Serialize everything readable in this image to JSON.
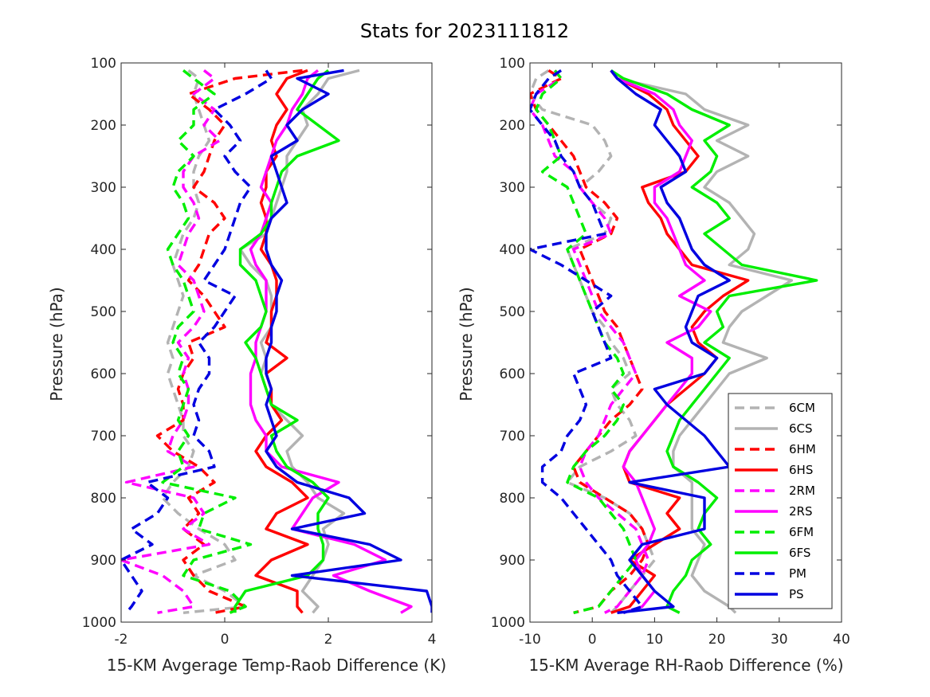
{
  "title": "Stats for 2023111812",
  "colors": {
    "6C": "#b3b3b3",
    "6H": "#ff0000",
    "2R": "#ff00ff",
    "6F": "#00ee00",
    "P": "#0000e0"
  },
  "legend": [
    {
      "name": "6CM",
      "color": "#b3b3b3",
      "dash": true
    },
    {
      "name": "6CS",
      "color": "#b3b3b3",
      "dash": false
    },
    {
      "name": "6HM",
      "color": "#ff0000",
      "dash": true
    },
    {
      "name": "6HS",
      "color": "#ff0000",
      "dash": false
    },
    {
      "name": "2RM",
      "color": "#ff00ff",
      "dash": true
    },
    {
      "name": "2RS",
      "color": "#ff00ff",
      "dash": false
    },
    {
      "name": "6FM",
      "color": "#00ee00",
      "dash": true
    },
    {
      "name": "6FS",
      "color": "#00ee00",
      "dash": false
    },
    {
      "name": "PM",
      "color": "#0000e0",
      "dash": true
    },
    {
      "name": "PS",
      "color": "#0000e0",
      "dash": false
    }
  ],
  "chart_data": [
    {
      "type": "line",
      "xlabel": "15-KM Avgerage Temp-Raob Difference (K)",
      "ylabel": "Pressure (hPa)",
      "xlim": [
        -2,
        4
      ],
      "ylim": [
        100,
        1000
      ],
      "y_reversed": true,
      "xticks": [
        "-2",
        "0",
        "2",
        "4"
      ],
      "yticks": [
        "100",
        "200",
        "300",
        "400",
        "500",
        "600",
        "700",
        "800",
        "900",
        "1000"
      ],
      "pressure": [
        112,
        125,
        150,
        175,
        200,
        225,
        250,
        275,
        300,
        325,
        350,
        375,
        400,
        425,
        450,
        475,
        500,
        525,
        550,
        575,
        600,
        625,
        650,
        675,
        700,
        725,
        750,
        775,
        800,
        825,
        850,
        875,
        900,
        925,
        950,
        975,
        985
      ],
      "series": [
        {
          "name": "6CM",
          "values": [
            -0.7,
            -0.5,
            -0.6,
            -0.5,
            -0.4,
            -0.3,
            -0.5,
            -0.6,
            -0.6,
            -0.5,
            -0.6,
            -0.8,
            -0.9,
            -1.0,
            -0.9,
            -0.8,
            -0.9,
            -1.0,
            -1.1,
            -1.0,
            -1.1,
            -1.0,
            -0.9,
            -0.8,
            -0.8,
            -0.6,
            -0.7,
            -1.0,
            -1.2,
            -0.9,
            -0.5,
            0.0,
            0.2,
            -0.6,
            0.0,
            0.4,
            -0.8
          ]
        },
        {
          "name": "6CS",
          "values": [
            2.6,
            2.0,
            1.8,
            1.5,
            1.6,
            1.4,
            1.2,
            1.2,
            1.1,
            1.0,
            0.9,
            0.8,
            0.3,
            0.5,
            0.8,
            0.9,
            0.9,
            0.9,
            0.7,
            0.8,
            0.7,
            0.8,
            0.9,
            1.2,
            1.5,
            1.2,
            1.3,
            1.6,
            1.8,
            2.3,
            1.9,
            2.0,
            1.9,
            1.7,
            1.5,
            1.8,
            1.7
          ]
        },
        {
          "name": "6HM",
          "values": [
            1.5,
            0.2,
            -0.7,
            -0.3,
            0.0,
            -0.2,
            -0.3,
            -0.4,
            -0.6,
            -0.2,
            0.0,
            -0.3,
            -0.4,
            -0.5,
            -0.7,
            -0.4,
            -0.2,
            0.0,
            -0.7,
            -0.6,
            -0.8,
            -0.9,
            -0.8,
            -0.8,
            -1.3,
            -1.0,
            -0.5,
            -0.2,
            -0.7,
            -0.5,
            -0.8,
            -0.4,
            -0.8,
            -0.6,
            -0.3,
            0.4,
            -0.2
          ]
        },
        {
          "name": "6HS",
          "values": [
            1.6,
            1.2,
            1.0,
            1.2,
            1.0,
            0.9,
            1.0,
            0.8,
            0.8,
            0.7,
            0.8,
            0.8,
            0.7,
            0.9,
            1.0,
            1.0,
            0.9,
            0.9,
            0.8,
            1.2,
            0.8,
            0.9,
            0.9,
            1.1,
            0.8,
            0.6,
            0.8,
            1.3,
            1.6,
            1.0,
            0.8,
            1.6,
            0.9,
            0.6,
            1.4,
            1.4,
            1.5
          ]
        },
        {
          "name": "2RM",
          "values": [
            -0.4,
            -0.2,
            -0.6,
            -0.2,
            -0.4,
            -0.1,
            -0.6,
            -0.8,
            -0.8,
            -0.6,
            -0.5,
            -0.7,
            -0.8,
            -0.9,
            -0.6,
            -0.5,
            -0.4,
            -0.6,
            -0.9,
            -0.7,
            -0.8,
            -0.7,
            -0.7,
            -0.8,
            -1.0,
            -1.1,
            -0.6,
            -1.9,
            -0.6,
            -0.4,
            -0.8,
            -0.3,
            -2.0,
            -1.2,
            -0.8,
            -0.6,
            -1.3
          ]
        },
        {
          "name": "2RS",
          "values": [
            1.8,
            1.6,
            1.5,
            1.3,
            1.2,
            1.0,
            0.9,
            0.8,
            0.7,
            0.9,
            0.8,
            0.7,
            0.5,
            0.6,
            0.8,
            0.8,
            0.8,
            0.7,
            0.6,
            0.6,
            0.5,
            0.5,
            0.5,
            0.6,
            0.8,
            0.8,
            1.1,
            2.2,
            1.7,
            1.5,
            1.3,
            2.5,
            3.1,
            2.1,
            2.8,
            3.6,
            3.4
          ]
        },
        {
          "name": "6FM",
          "values": [
            -0.8,
            -0.6,
            -0.2,
            -0.6,
            -0.6,
            -0.9,
            -0.6,
            -0.9,
            -1.0,
            -0.8,
            -0.7,
            -0.9,
            -1.1,
            -1.0,
            -0.8,
            -0.7,
            -0.6,
            -0.9,
            -1.0,
            -0.8,
            -0.9,
            -0.7,
            -0.8,
            -0.9,
            -0.7,
            -0.9,
            -0.8,
            -1.2,
            0.2,
            -0.4,
            -0.5,
            0.5,
            -0.6,
            -0.8,
            0.1,
            0.4,
            0.1
          ]
        },
        {
          "name": "6FS",
          "values": [
            2.0,
            1.8,
            1.6,
            1.4,
            1.8,
            2.2,
            1.4,
            1.1,
            1.0,
            0.9,
            0.9,
            0.7,
            0.3,
            0.3,
            0.6,
            0.7,
            0.8,
            0.7,
            0.4,
            0.6,
            0.7,
            0.8,
            0.9,
            1.4,
            0.9,
            1.0,
            1.2,
            1.7,
            2.0,
            1.8,
            1.8,
            1.9,
            1.9,
            1.6,
            0.4,
            0.2,
            0.2
          ]
        },
        {
          "name": "PM",
          "values": [
            0.8,
            0.9,
            0.4,
            -0.2,
            0.1,
            0.3,
            0.0,
            0.2,
            0.5,
            0.3,
            0.2,
            0.1,
            0.0,
            -0.2,
            -0.4,
            0.2,
            0.0,
            -0.2,
            -0.5,
            -0.3,
            -0.3,
            -0.5,
            -0.6,
            -0.5,
            -0.6,
            -0.3,
            -0.2,
            -1.5,
            -1.1,
            -1.3,
            -1.8,
            -1.4,
            -2.0,
            -1.8,
            -1.6,
            -1.8,
            -1.9
          ]
        },
        {
          "name": "PS",
          "values": [
            2.3,
            1.4,
            2.0,
            1.5,
            1.2,
            1.4,
            0.9,
            1.0,
            1.1,
            1.2,
            0.9,
            0.8,
            0.8,
            0.9,
            1.1,
            1.0,
            1.0,
            0.9,
            0.9,
            0.8,
            0.8,
            0.9,
            0.8,
            0.9,
            1.0,
            0.8,
            1.0,
            1.4,
            2.4,
            2.7,
            1.3,
            2.8,
            3.4,
            1.3,
            3.9,
            4.0,
            4.0
          ]
        }
      ]
    },
    {
      "type": "line",
      "xlabel": "15-KM Average RH-Raob Difference (%)",
      "ylabel": "Pressure (hPa)",
      "xlim": [
        -10,
        40
      ],
      "ylim": [
        100,
        1000
      ],
      "y_reversed": true,
      "xticks": [
        "-10",
        "0",
        "10",
        "20",
        "30",
        "40"
      ],
      "yticks": [
        "100",
        "200",
        "300",
        "400",
        "500",
        "600",
        "700",
        "800",
        "900",
        "1000"
      ],
      "pressure": [
        112,
        125,
        150,
        175,
        200,
        225,
        250,
        275,
        300,
        325,
        350,
        375,
        400,
        425,
        450,
        475,
        500,
        525,
        550,
        575,
        600,
        625,
        650,
        675,
        700,
        725,
        750,
        775,
        800,
        825,
        850,
        875,
        900,
        925,
        950,
        975,
        985
      ],
      "series": [
        {
          "name": "6CM",
          "values": [
            -7,
            -9,
            -10,
            -8,
            0,
            2,
            3,
            1,
            -2,
            0,
            3,
            2,
            -4,
            -3,
            -2,
            -1,
            0,
            2,
            3,
            5,
            6,
            3,
            4,
            6,
            7,
            3,
            -2,
            -4,
            2,
            6,
            8,
            9,
            10,
            8,
            6,
            4,
            3
          ]
        },
        {
          "name": "6CS",
          "values": [
            3,
            4,
            15,
            18,
            25,
            20,
            25,
            20,
            18,
            22,
            24,
            26,
            25,
            22,
            32,
            28,
            24,
            22,
            21,
            28,
            22,
            20,
            18,
            16,
            14,
            13,
            13,
            16,
            16,
            16,
            16,
            18,
            17,
            16,
            18,
            22,
            23
          ]
        },
        {
          "name": "6HM",
          "values": [
            -7,
            -5,
            -10,
            -9,
            -7,
            -5,
            -3,
            -2,
            -1,
            2,
            4,
            3,
            -2,
            -1,
            0,
            1,
            2,
            4,
            5,
            6,
            7,
            8,
            6,
            3,
            1,
            -1,
            -3,
            -2,
            2,
            6,
            8,
            9,
            8,
            6,
            3,
            1,
            -3
          ]
        },
        {
          "name": "6HS",
          "values": [
            3,
            4,
            9,
            12,
            13,
            15,
            17,
            15,
            8,
            9,
            11,
            12,
            14,
            16,
            25,
            21,
            18,
            16,
            17,
            20,
            18,
            15,
            12,
            10,
            8,
            6,
            5,
            6,
            14,
            12,
            14,
            10,
            6,
            10,
            8,
            6,
            3
          ]
        },
        {
          "name": "2RM",
          "values": [
            -6,
            -5,
            -9,
            -10,
            -8,
            -7,
            -6,
            -3,
            -2,
            0,
            2,
            3,
            -3,
            -2,
            -1,
            0,
            1,
            3,
            5,
            6,
            7,
            5,
            3,
            2,
            1,
            -1,
            -2,
            -1,
            1,
            4,
            7,
            8,
            9,
            8,
            6,
            4,
            2
          ]
        },
        {
          "name": "2RS",
          "values": [
            3,
            4,
            10,
            13,
            14,
            16,
            15,
            14,
            10,
            10,
            12,
            13,
            14,
            15,
            18,
            14,
            19,
            17,
            12,
            16,
            16,
            14,
            12,
            10,
            8,
            6,
            5,
            7,
            8,
            9,
            10,
            9,
            7,
            8,
            10,
            8,
            5
          ]
        },
        {
          "name": "6FM",
          "values": [
            -6,
            -5,
            -8,
            -9,
            -7,
            -6,
            -5,
            -8,
            -4,
            -3,
            -2,
            -1,
            -4,
            -3,
            -2,
            -1,
            0,
            1,
            2,
            4,
            5,
            3,
            5,
            4,
            2,
            -1,
            -3,
            -4,
            1,
            3,
            5,
            6,
            7,
            5,
            3,
            1,
            -3
          ]
        },
        {
          "name": "6FS",
          "values": [
            3,
            5,
            12,
            16,
            22,
            18,
            20,
            19,
            16,
            20,
            22,
            18,
            21,
            24,
            36,
            22,
            20,
            21,
            18,
            22,
            20,
            18,
            16,
            14,
            13,
            12,
            13,
            17,
            20,
            18,
            17,
            19,
            16,
            15,
            13,
            12,
            14
          ]
        },
        {
          "name": "PM",
          "values": [
            -5,
            -7,
            -9,
            -10,
            -8,
            -6,
            -5,
            -3,
            -2,
            0,
            1,
            2,
            -10,
            -5,
            -1,
            3,
            0,
            1,
            2,
            3,
            -3,
            -2,
            -1,
            -2,
            -4,
            -5,
            -8,
            -8,
            -5,
            -3,
            -1,
            1,
            3,
            4,
            6,
            8,
            5
          ]
        },
        {
          "name": "PS",
          "values": [
            3,
            4,
            7,
            11,
            10,
            12,
            14,
            15,
            11,
            12,
            14,
            15,
            16,
            18,
            22,
            17,
            16,
            15,
            16,
            20,
            18,
            10,
            12,
            15,
            18,
            20,
            22,
            6,
            18,
            18,
            18,
            8,
            6,
            8,
            10,
            13,
            4
          ]
        }
      ]
    }
  ]
}
